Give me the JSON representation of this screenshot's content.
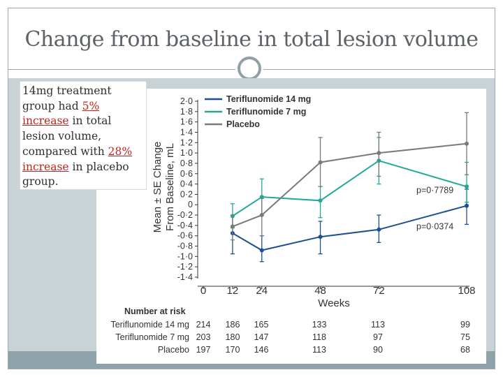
{
  "slide": {
    "title": "Change from baseline in total lesion volume",
    "note": {
      "part1": "14mg treatment group had ",
      "highlight1": "5% increase",
      "part2": " in total lesion volume, compared with ",
      "highlight2": "28% increase",
      "part3": " in placebo group."
    }
  },
  "colors": {
    "teri14": "#1d4f91",
    "teri7": "#22a996",
    "placebo": "#7a7a7a"
  },
  "chart_data": {
    "type": "line",
    "xlabel": "Weeks",
    "ylabel_line1": "Mean ± SE Change",
    "ylabel_line2": "From Baseline, mL",
    "x": [
      0,
      12,
      24,
      48,
      72,
      108
    ],
    "x_tick_labels": [
      "0",
      "12",
      "24",
      "48",
      "72",
      "108"
    ],
    "xlim": [
      0,
      108
    ],
    "ylim": [
      -1.4,
      2.0
    ],
    "y_ticks": [
      2.0,
      1.8,
      1.6,
      1.4,
      1.2,
      1.0,
      0.8,
      0.6,
      0.4,
      0.2,
      0.0,
      -0.2,
      -0.4,
      -0.6,
      -0.8,
      -1.0,
      -1.2,
      -1.4
    ],
    "y_tick_labels": [
      "2·0",
      "1·8",
      "1·6",
      "1·4",
      "1·2",
      "1·0",
      "0·8",
      "0·6",
      "0·4",
      "0·2",
      "0",
      "-0·2",
      "-0·4",
      "-0·6",
      "-0·8",
      "-1·0",
      "-1·2",
      "-1·4"
    ],
    "series": [
      {
        "name": "Teriflunomide 14 mg",
        "color_key": "teri14",
        "points": [
          {
            "x": 12,
            "y": -0.55,
            "lo": -0.95,
            "hi": -0.2
          },
          {
            "x": 24,
            "y": -0.88,
            "lo": -1.1,
            "hi": -0.6
          },
          {
            "x": 48,
            "y": -0.62,
            "lo": -0.95,
            "hi": -0.32
          },
          {
            "x": 72,
            "y": -0.48,
            "lo": -0.73,
            "hi": -0.2
          },
          {
            "x": 108,
            "y": -0.02,
            "lo": -0.38,
            "hi": 0.3
          }
        ]
      },
      {
        "name": "Teriflunomide 7 mg",
        "color_key": "teri7",
        "points": [
          {
            "x": 12,
            "y": -0.22,
            "lo": -0.45,
            "hi": 0.02
          },
          {
            "x": 24,
            "y": 0.15,
            "lo": -0.2,
            "hi": 0.5
          },
          {
            "x": 48,
            "y": 0.08,
            "lo": -0.25,
            "hi": 0.35
          },
          {
            "x": 72,
            "y": 0.85,
            "lo": 0.4,
            "hi": 1.3
          },
          {
            "x": 108,
            "y": 0.35,
            "lo": 0.05,
            "hi": 0.82
          }
        ]
      },
      {
        "name": "Placebo",
        "color_key": "placebo",
        "points": [
          {
            "x": 12,
            "y": -0.42,
            "lo": -0.68,
            "hi": -0.2
          },
          {
            "x": 24,
            "y": -0.2,
            "lo": -0.6,
            "hi": 0.12
          },
          {
            "x": 48,
            "y": 0.82,
            "lo": 0.35,
            "hi": 1.3
          },
          {
            "x": 72,
            "y": 1.0,
            "lo": 0.55,
            "hi": 1.4
          },
          {
            "x": 108,
            "y": 1.18,
            "lo": 0.58,
            "hi": 1.78
          }
        ]
      }
    ],
    "annotations": [
      {
        "text": "p=0·7789",
        "x": 95,
        "y": 0.28
      },
      {
        "text": "p=0·0374",
        "x": 95,
        "y": -0.42
      }
    ],
    "legend_position": "top-left",
    "risk_table": {
      "title": "Number at risk",
      "rows": [
        {
          "label": "Teriflunomide 14 mg",
          "values": [
            "214",
            "186",
            "165",
            "133",
            "113",
            "99"
          ]
        },
        {
          "label": "Teriflunomide 7 mg",
          "values": [
            "203",
            "180",
            "147",
            "118",
            "97",
            "75"
          ]
        },
        {
          "label": "Placebo",
          "values": [
            "197",
            "170",
            "146",
            "113",
            "90",
            "68"
          ]
        }
      ]
    }
  }
}
